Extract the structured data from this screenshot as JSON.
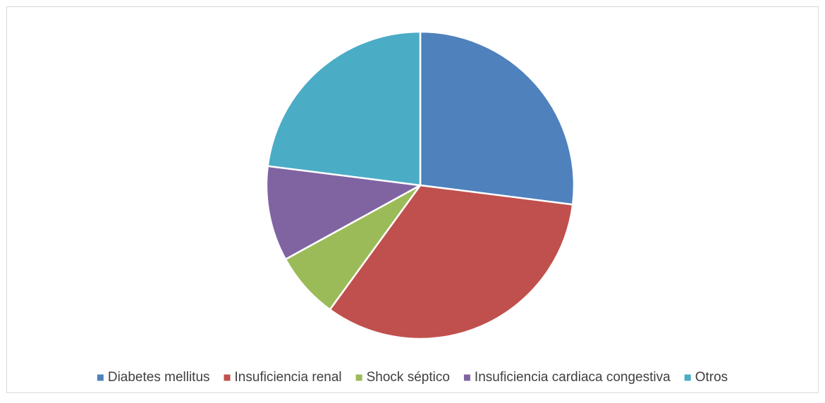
{
  "chart_data": {
    "type": "pie",
    "categories": [
      "Diabetes mellitus",
      "Insuficiencia renal",
      "Shock séptico",
      "Insuficiencia cardiaca congestiva",
      "Otros"
    ],
    "values": [
      27,
      33,
      7,
      10,
      23
    ],
    "colors": [
      "#4f81bd",
      "#c0504d",
      "#9bbb59",
      "#8064a2",
      "#4bacc6"
    ],
    "legend": "bottom"
  }
}
